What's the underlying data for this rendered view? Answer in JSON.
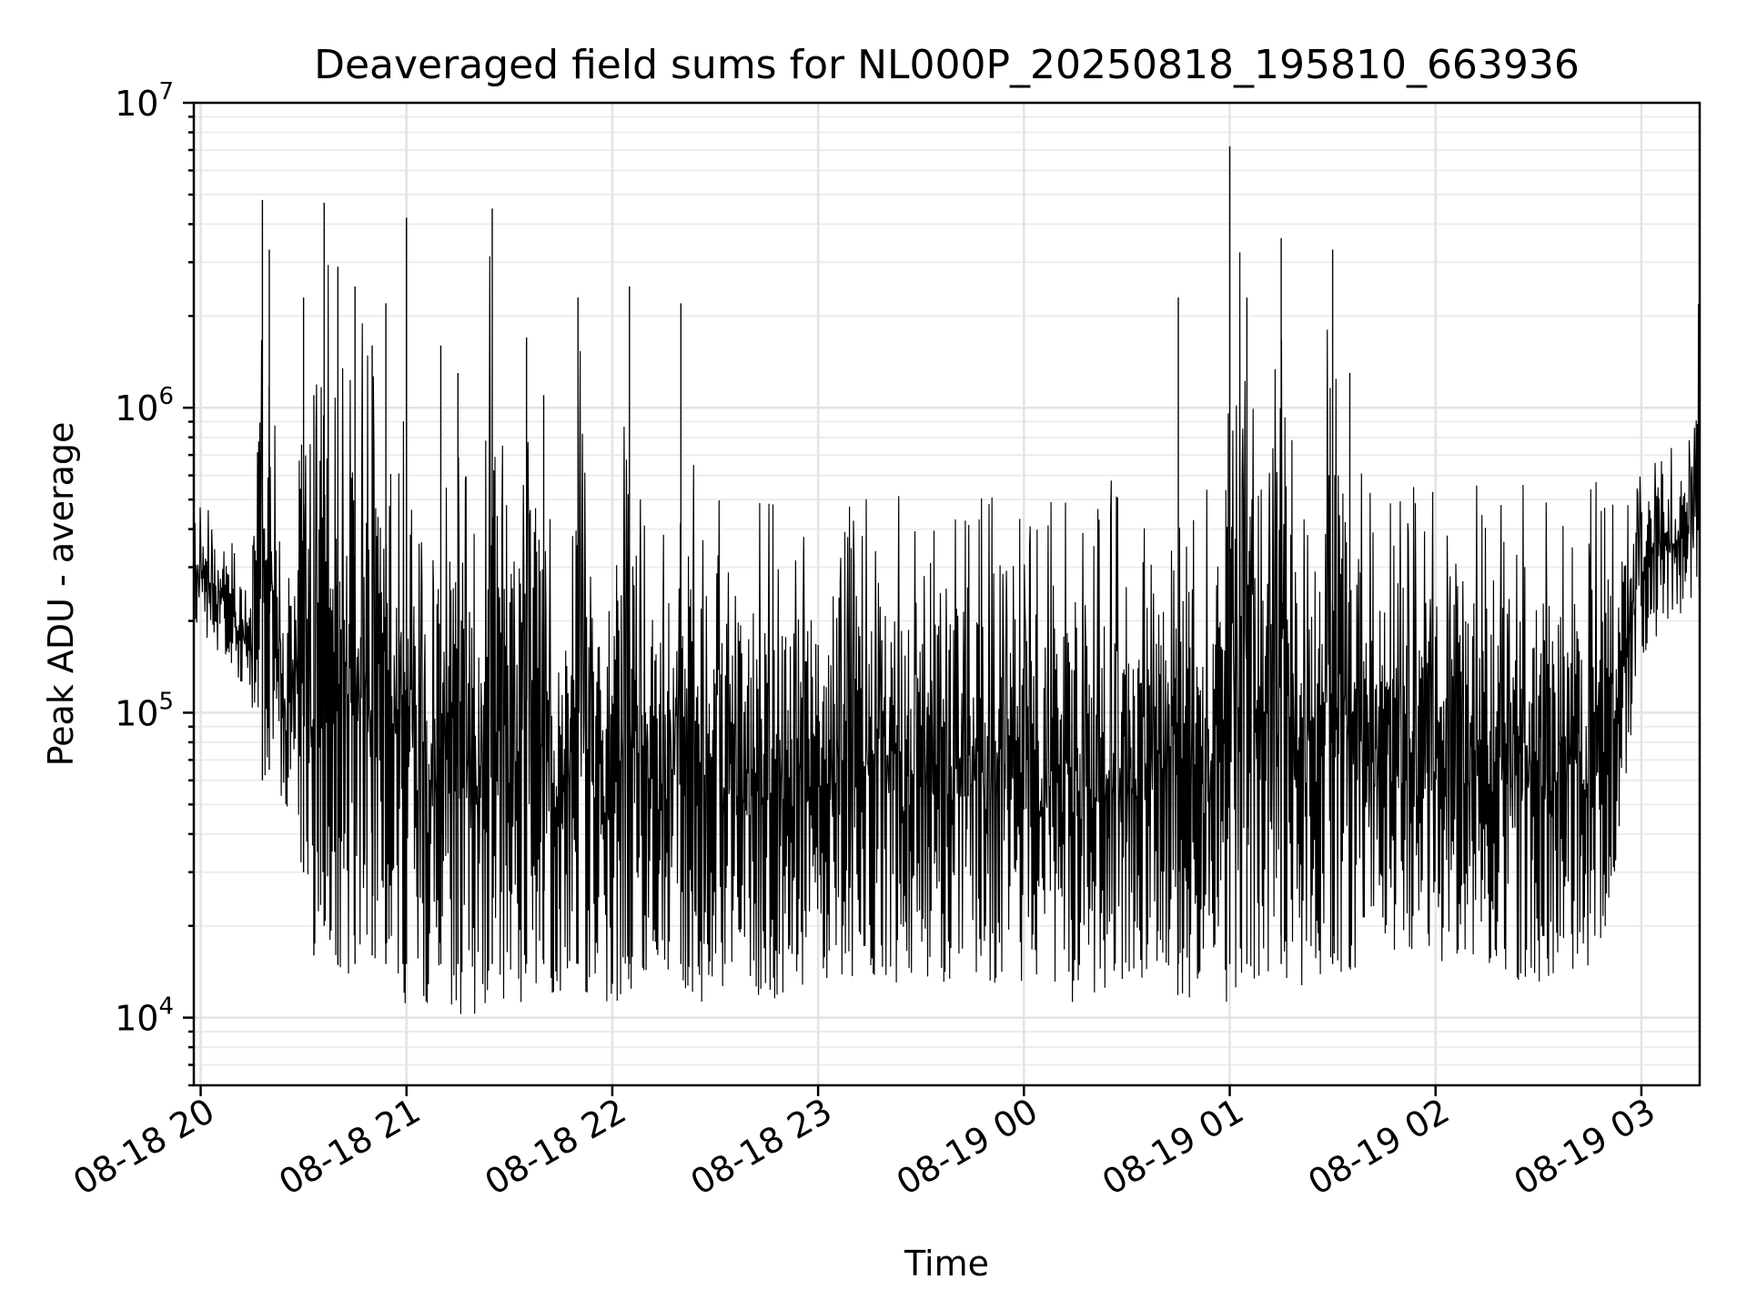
{
  "chart_data": {
    "type": "line",
    "title": "Deaveraged field sums for NL000P_20250818_195810_663936",
    "xlabel": "Time",
    "ylabel": "Peak ADU - average",
    "y_scale": "log",
    "grid": "major and minor",
    "x_range": [
      "2025-08-18 19:58",
      "2025-08-19 03:17"
    ],
    "ylim": [
      6000,
      10000000
    ],
    "x_ticks": [
      "08-18 20",
      "08-18 21",
      "08-18 22",
      "08-18 23",
      "08-19 00",
      "08-19 01",
      "08-19 02",
      "08-19 03"
    ],
    "y_ticks": [
      {
        "base": "10",
        "exp": "4",
        "value": 10000
      },
      {
        "base": "10",
        "exp": "5",
        "value": 100000
      },
      {
        "base": "10",
        "exp": "6",
        "value": 1000000
      },
      {
        "base": "10",
        "exp": "7",
        "value": 10000000
      }
    ],
    "series": [
      {
        "color": "#000000",
        "x": [
          "2025-08-18 19:58",
          "2025-08-18 20:00",
          "2025-08-18 20:05",
          "2025-08-18 20:10",
          "2025-08-18 20:15",
          "2025-08-18 20:18",
          "2025-08-18 20:20",
          "2025-08-18 20:25",
          "2025-08-18 20:30",
          "2025-08-18 20:33",
          "2025-08-18 20:36",
          "2025-08-18 20:40",
          "2025-08-18 20:45",
          "2025-08-18 20:50",
          "2025-08-18 20:54",
          "2025-08-18 21:00",
          "2025-08-18 21:06",
          "2025-08-18 21:10",
          "2025-08-18 21:15",
          "2025-08-18 21:20",
          "2025-08-18 21:25",
          "2025-08-18 21:30",
          "2025-08-18 21:35",
          "2025-08-18 21:40",
          "2025-08-18 21:45",
          "2025-08-18 21:50",
          "2025-08-18 21:55",
          "2025-08-18 22:00",
          "2025-08-18 22:05",
          "2025-08-18 22:10",
          "2025-08-18 22:15",
          "2025-08-18 22:20",
          "2025-08-18 22:25",
          "2025-08-18 22:30",
          "2025-08-18 22:35",
          "2025-08-18 22:40",
          "2025-08-18 22:45",
          "2025-08-18 22:50",
          "2025-08-18 22:55",
          "2025-08-18 23:00",
          "2025-08-18 23:05",
          "2025-08-18 23:10",
          "2025-08-18 23:15",
          "2025-08-18 23:20",
          "2025-08-18 23:25",
          "2025-08-18 23:30",
          "2025-08-18 23:35",
          "2025-08-18 23:40",
          "2025-08-18 23:45",
          "2025-08-18 23:50",
          "2025-08-18 23:55",
          "2025-08-19 00:00",
          "2025-08-19 00:05",
          "2025-08-19 00:10",
          "2025-08-19 00:15",
          "2025-08-19 00:20",
          "2025-08-19 00:25",
          "2025-08-19 00:30",
          "2025-08-19 00:35",
          "2025-08-19 00:40",
          "2025-08-19 00:45",
          "2025-08-19 00:50",
          "2025-08-19 00:55",
          "2025-08-19 01:00",
          "2025-08-19 01:05",
          "2025-08-19 01:10",
          "2025-08-19 01:15",
          "2025-08-19 01:20",
          "2025-08-19 01:25",
          "2025-08-19 01:30",
          "2025-08-19 01:35",
          "2025-08-19 01:40",
          "2025-08-19 01:45",
          "2025-08-19 01:50",
          "2025-08-19 01:55",
          "2025-08-19 02:00",
          "2025-08-19 02:05",
          "2025-08-19 02:10",
          "2025-08-19 02:15",
          "2025-08-19 02:20",
          "2025-08-19 02:25",
          "2025-08-19 02:30",
          "2025-08-19 02:35",
          "2025-08-19 02:40",
          "2025-08-19 02:45",
          "2025-08-19 02:50",
          "2025-08-19 02:55",
          "2025-08-19 03:00",
          "2025-08-19 03:05",
          "2025-08-19 03:10",
          "2025-08-19 03:15",
          "2025-08-19 03:17"
        ],
        "low": [
          200000,
          180000,
          150000,
          130000,
          100000,
          60000,
          65000,
          45000,
          30000,
          16000,
          20000,
          14000,
          13000,
          16000,
          12000,
          11000,
          11000,
          13000,
          10000,
          10000,
          12000,
          11000,
          11000,
          12000,
          12000,
          12000,
          12000,
          11000,
          12000,
          13000,
          12000,
          11000,
          11000,
          12000,
          13000,
          12000,
          11000,
          12000,
          12000,
          13000,
          13000,
          12000,
          13000,
          13000,
          13000,
          14000,
          13000,
          12000,
          12000,
          13000,
          13000,
          13000,
          12000,
          12000,
          11000,
          12000,
          12000,
          13000,
          13000,
          12000,
          11000,
          12000,
          12000,
          11000,
          13000,
          14000,
          13000,
          12000,
          13000,
          13000,
          14000,
          15000,
          16000,
          16000,
          15000,
          15000,
          15000,
          14000,
          15000,
          14000,
          13000,
          13000,
          14000,
          13000,
          15000,
          20000,
          50000,
          150000,
          180000,
          200000,
          230000,
          250000
        ],
        "high": [
          600000,
          500000,
          480000,
          350000,
          300000,
          4800000,
          3300000,
          280000,
          2300000,
          1100000,
          4700000,
          2900000,
          2500000,
          1600000,
          2200000,
          4200000,
          200000,
          1600000,
          1300000,
          450000,
          4500000,
          650000,
          1700000,
          1100000,
          450000,
          2300000,
          450000,
          450000,
          2500000,
          700000,
          450000,
          2200000,
          480000,
          500000,
          500000,
          500000,
          550000,
          550000,
          550000,
          520000,
          550000,
          500000,
          520000,
          550000,
          530000,
          550000,
          550000,
          520000,
          500000,
          520000,
          600000,
          550000,
          550000,
          550000,
          560000,
          580000,
          600000,
          550000,
          550000,
          550000,
          2300000,
          540000,
          540000,
          7200000,
          2300000,
          550000,
          3600000,
          520000,
          560000,
          3300000,
          1300000,
          560000,
          550000,
          560000,
          560000,
          560000,
          560000,
          560000,
          560000,
          560000,
          560000,
          560000,
          580000,
          600000,
          650000,
          700000,
          700000,
          700000,
          750000,
          800000,
          850000,
          3100000
        ]
      }
    ]
  }
}
